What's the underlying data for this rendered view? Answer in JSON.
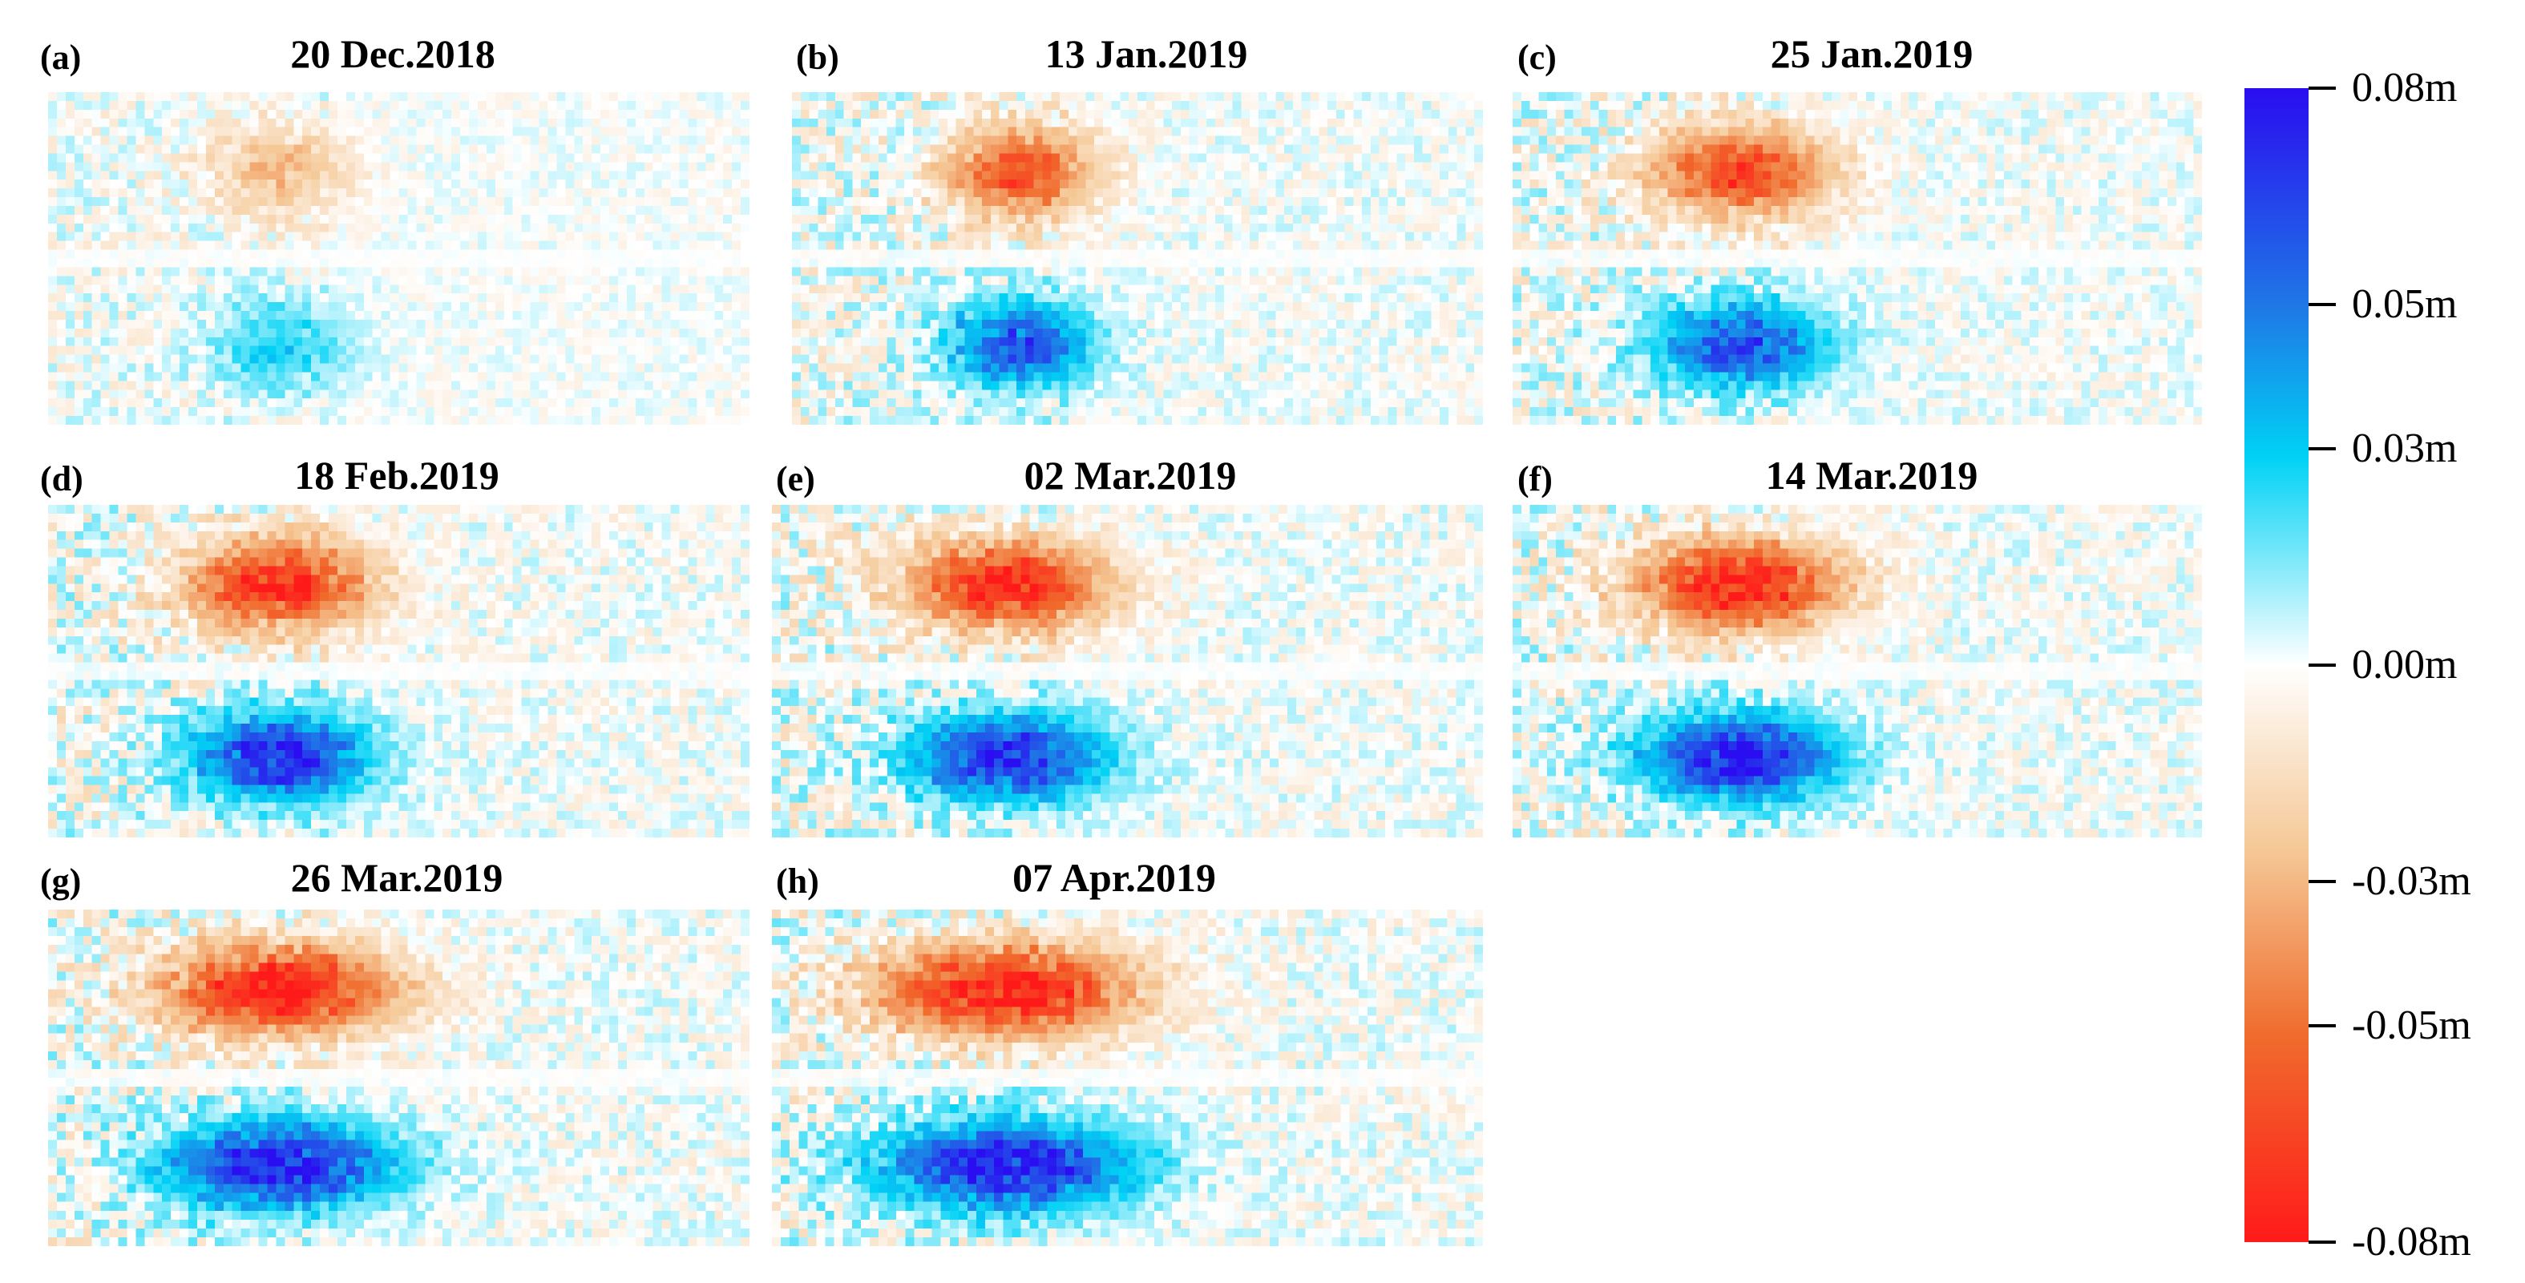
{
  "panels": [
    {
      "label": "(a)",
      "date": "20 Dec.2018",
      "intensity": 0.35,
      "extent": 0.55
    },
    {
      "label": "(b)",
      "date": "13 Jan.2019",
      "intensity": 0.75,
      "extent": 0.6
    },
    {
      "label": "(c)",
      "date": "25 Jan.2019",
      "intensity": 0.78,
      "extent": 0.8
    },
    {
      "label": "(d)",
      "date": "18 Feb.2019",
      "intensity": 0.9,
      "extent": 0.8
    },
    {
      "label": "(e)",
      "date": "02 Mar.2019",
      "intensity": 0.92,
      "extent": 0.9
    },
    {
      "label": "(f)",
      "date": "14 Mar.2019",
      "intensity": 0.95,
      "extent": 0.95
    },
    {
      "label": "(g)",
      "date": "26 Mar.2019",
      "intensity": 0.97,
      "extent": 1.1
    },
    {
      "label": "(h)",
      "date": "07 Apr.2019",
      "intensity": 1.0,
      "extent": 1.2
    }
  ],
  "colorbar": {
    "ticks": [
      "0.08m",
      "0.05m",
      "0.03m",
      "0.00m",
      "-0.03m",
      "-0.05m",
      "-0.08m"
    ],
    "tick_values": [
      0.08,
      0.05,
      0.03,
      0.0,
      -0.03,
      -0.05,
      -0.08
    ],
    "range": [
      -0.08,
      0.08
    ],
    "colors": {
      "max": "#2a0df0",
      "high": "#1f78e6",
      "mid_high": "#00d2f5",
      "zero": "#ffffff",
      "mid_low": "#f5c896",
      "low": "#f06c2d",
      "min": "#ff1a1a"
    }
  }
}
